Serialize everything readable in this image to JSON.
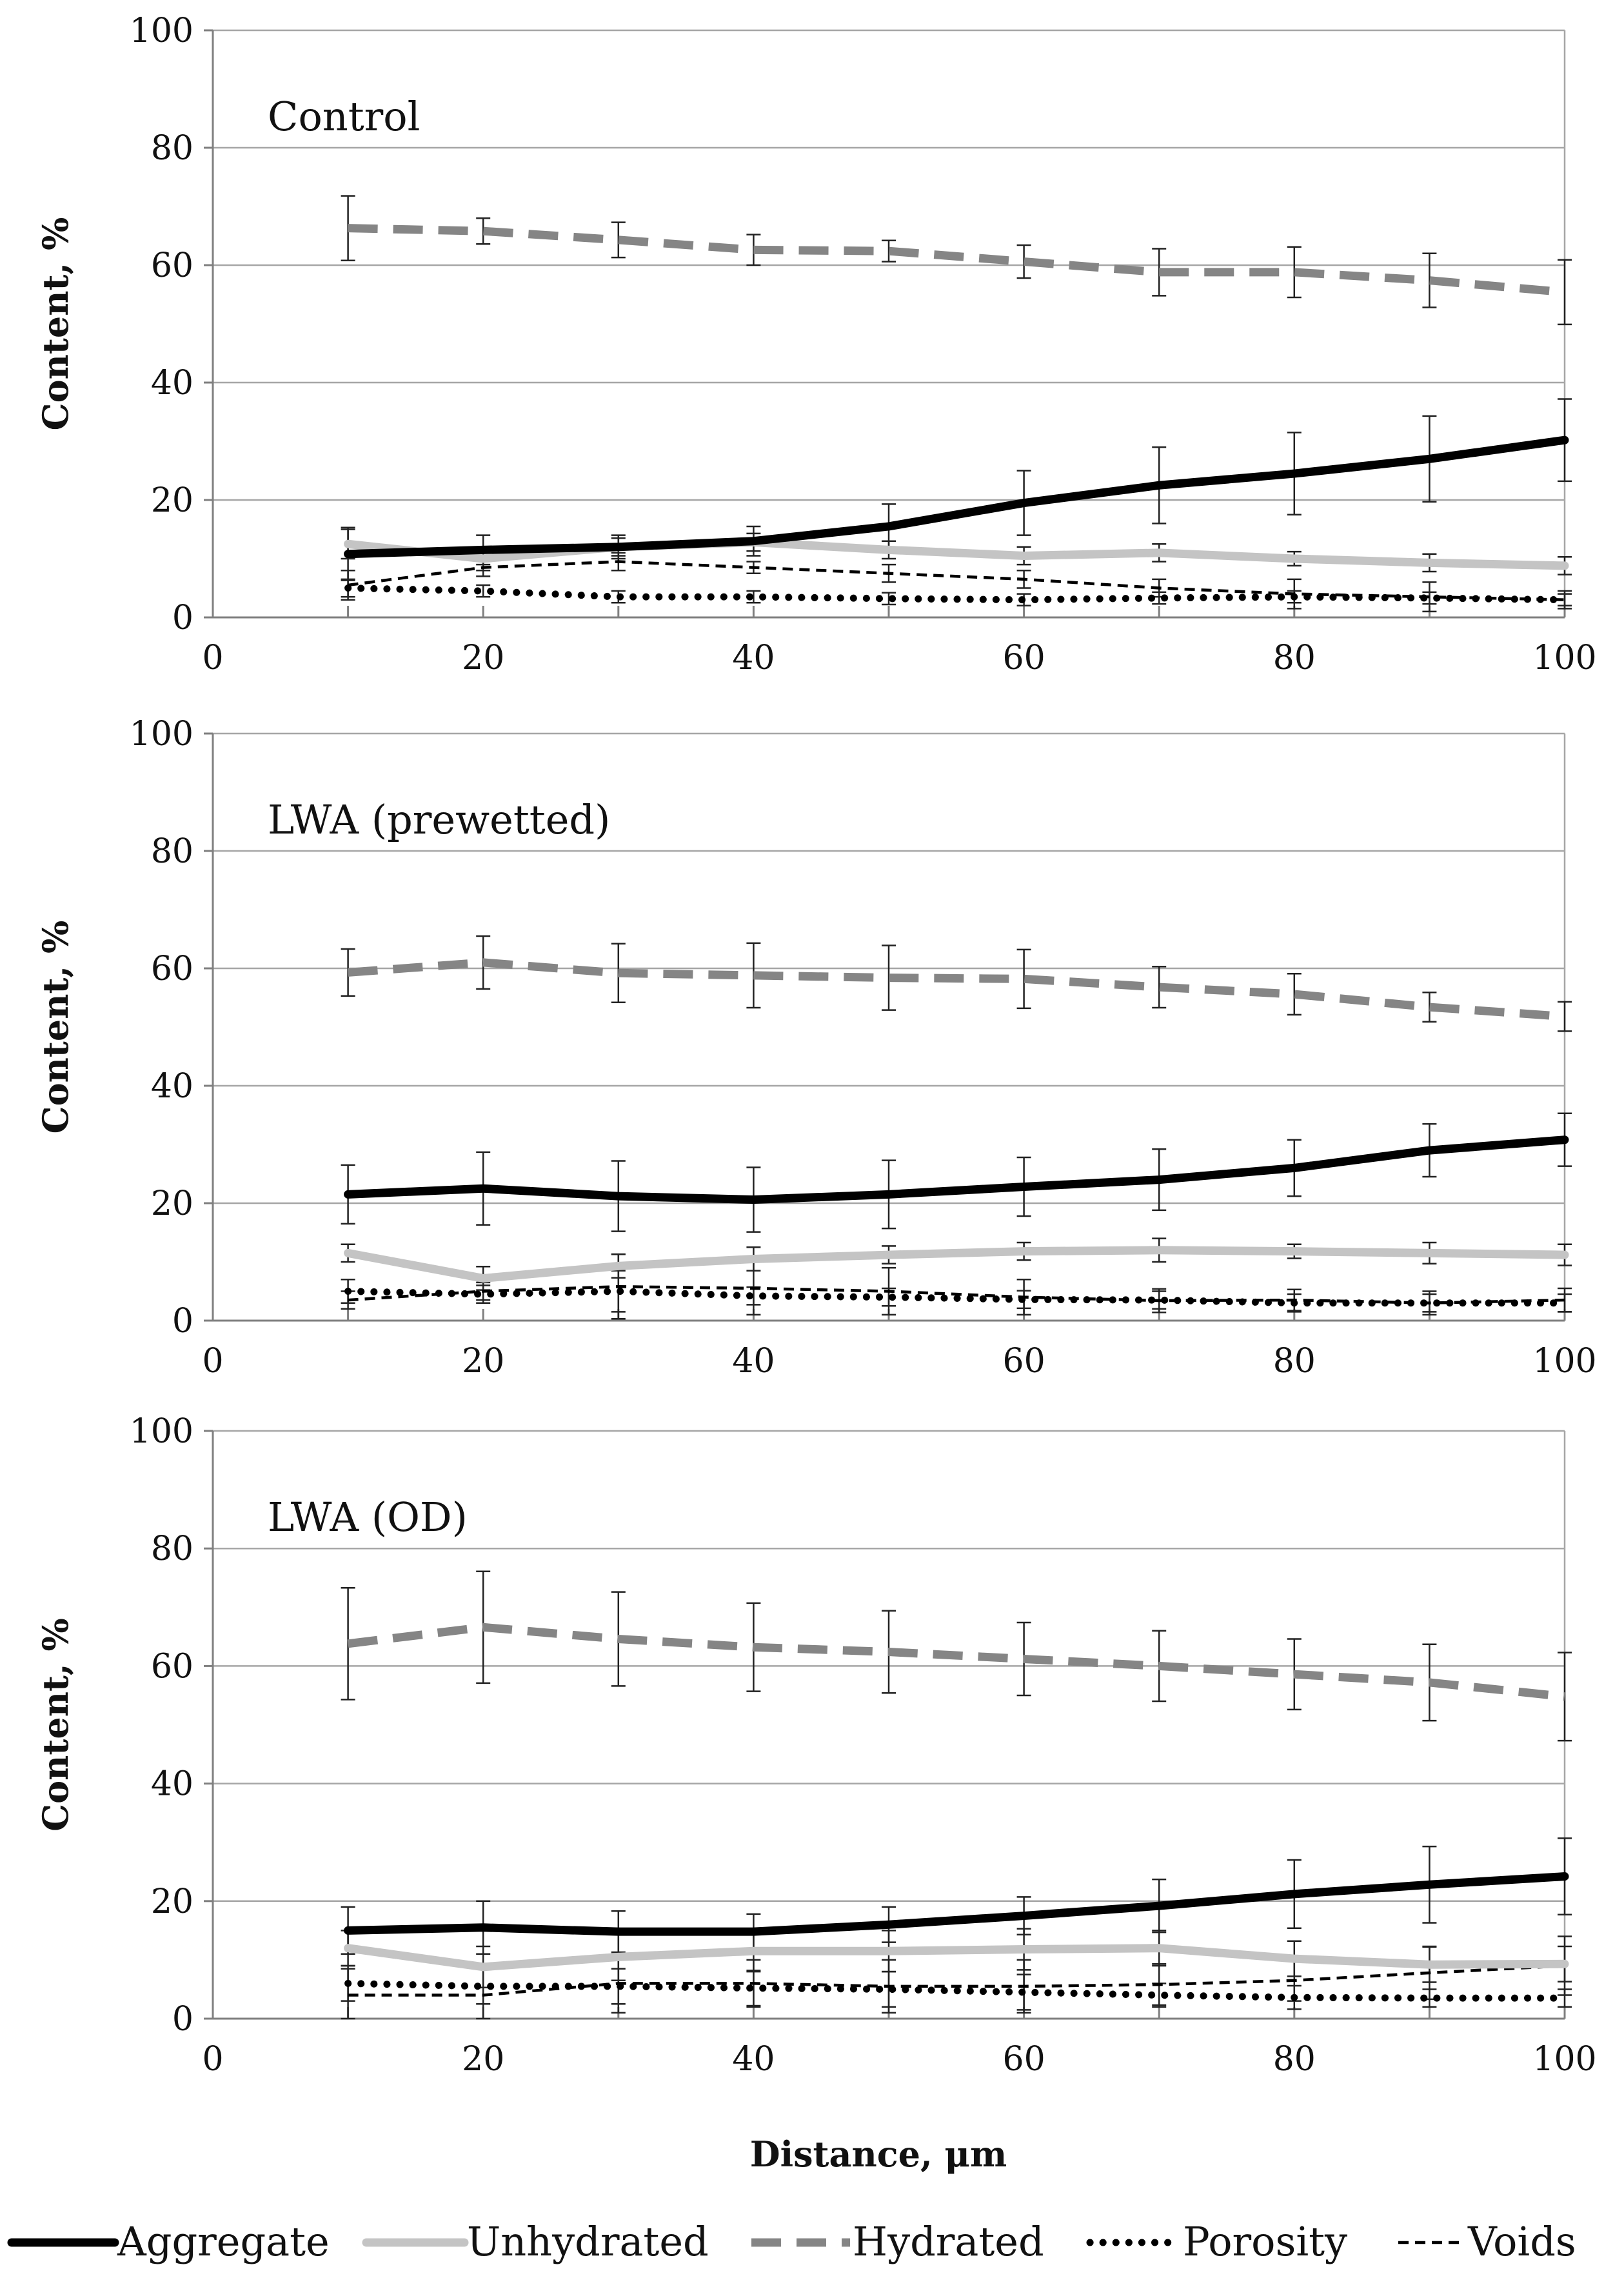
{
  "chart_data": {
    "type": "line",
    "xlabel": "Distance, μm",
    "x_ticks": [
      0,
      20,
      40,
      60,
      80,
      100
    ],
    "y_ticks": [
      0,
      20,
      40,
      60,
      80,
      100
    ],
    "xlim": [
      0,
      100
    ],
    "ylim": [
      0,
      100
    ],
    "grid": "horizontal",
    "legend_position": "bottom",
    "series_styles": [
      {
        "name": "Aggregate",
        "color": "#000000",
        "style": "solid-thick"
      },
      {
        "name": "Unhydrated",
        "color": "#c0c0c0",
        "style": "solid-thick"
      },
      {
        "name": "Hydrated",
        "color": "#808080",
        "style": "long-dash"
      },
      {
        "name": "Porosity",
        "color": "#000000",
        "style": "dotted"
      },
      {
        "name": "Voids",
        "color": "#000000",
        "style": "short-dash"
      }
    ],
    "panels": [
      {
        "title": "Control",
        "ylabel": "Content, %",
        "x": [
          10,
          20,
          30,
          40,
          50,
          60,
          70,
          80,
          90,
          100
        ],
        "series": [
          {
            "name": "Aggregate",
            "values": [
              10.8,
              11.5,
              12,
              13,
              15.5,
              19.5,
              22.5,
              24.5,
              27,
              30.2
            ],
            "errors": [
              4.5,
              2.5,
              2,
              2.5,
              3.8,
              5.5,
              6.5,
              7,
              7.3,
              7
            ]
          },
          {
            "name": "Unhydrated",
            "values": [
              12.5,
              10,
              12,
              12.8,
              11.5,
              10.5,
              11,
              10,
              9.3,
              8.8
            ],
            "errors": [
              2.5,
              2,
              1.5,
              1.5,
              1.5,
              1.5,
              1.5,
              1.2,
              1.5,
              1.5
            ]
          },
          {
            "name": "Hydrated",
            "values": [
              66.3,
              65.8,
              64.3,
              62.6,
              62.4,
              60.6,
              58.8,
              58.8,
              57.4,
              55.4
            ],
            "errors": [
              5.5,
              2.2,
              3,
              2.6,
              1.8,
              2.8,
              4,
              4.3,
              4.6,
              5.5
            ]
          },
          {
            "name": "Porosity",
            "values": [
              5,
              4.5,
              3.5,
              3.5,
              3.2,
              3,
              3.3,
              3.5,
              3.3,
              3
            ],
            "errors": [
              1.5,
              1,
              1,
              1,
              1,
              1,
              1,
              1,
              1,
              1
            ]
          },
          {
            "name": "Voids",
            "values": [
              5.5,
              8.5,
              9.5,
              8.5,
              7.5,
              6.5,
              5,
              4,
              3.5,
              3
            ],
            "errors": [
              2.5,
              1.5,
              1.5,
              1,
              1.5,
              1.5,
              1.5,
              2.5,
              2.5,
              1.5
            ]
          }
        ]
      },
      {
        "title": "LWA (prewetted)",
        "ylabel": "Content, %",
        "x": [
          10,
          20,
          30,
          40,
          50,
          60,
          70,
          80,
          90,
          100
        ],
        "series": [
          {
            "name": "Aggregate",
            "values": [
              21.5,
              22.5,
              21.2,
              20.6,
              21.5,
              22.8,
              24,
              26,
              29,
              30.8
            ],
            "errors": [
              5,
              6.2,
              6,
              5.5,
              5.8,
              5,
              5.2,
              4.8,
              4.5,
              4.5
            ]
          },
          {
            "name": "Unhydrated",
            "values": [
              11.5,
              7.2,
              9.3,
              10.5,
              11.2,
              11.8,
              12,
              11.8,
              11.5,
              11.2
            ],
            "errors": [
              1.5,
              2,
              2,
              2,
              1.5,
              1.5,
              2,
              1.2,
              1.8,
              1.8
            ]
          },
          {
            "name": "Hydrated",
            "values": [
              59.3,
              61,
              59.2,
              58.8,
              58.4,
              58.2,
              56.8,
              55.6,
              53.4,
              51.8
            ],
            "errors": [
              4,
              4.5,
              5,
              5.5,
              5.5,
              5,
              3.5,
              3.5,
              2.5,
              2.5
            ]
          },
          {
            "name": "Porosity",
            "values": [
              5,
              4.5,
              5,
              4.2,
              4,
              3.6,
              3.5,
              3,
              3,
              3
            ],
            "errors": [
              2,
              1.5,
              3.5,
              1.5,
              1.5,
              1.5,
              1.5,
              1.5,
              1.5,
              1.5
            ]
          },
          {
            "name": "Voids",
            "values": [
              3.5,
              5,
              5.8,
              5.5,
              5,
              4,
              3.4,
              3.5,
              3,
              3.5
            ],
            "errors": [
              1.5,
              1.5,
              5.5,
              4.5,
              4,
              3,
              2,
              1.8,
              2,
              2
            ]
          }
        ]
      },
      {
        "title": "LWA (OD)",
        "ylabel": "Content, %",
        "x": [
          10,
          20,
          30,
          40,
          50,
          60,
          70,
          80,
          90,
          100
        ],
        "series": [
          {
            "name": "Aggregate",
            "values": [
              15,
              15.5,
              14.8,
              14.8,
              16,
              17.5,
              19.2,
              21.2,
              22.8,
              24.2
            ],
            "errors": [
              4,
              4.5,
              3.5,
              3,
              3,
              3.2,
              4.5,
              5.8,
              6.5,
              6.5
            ]
          },
          {
            "name": "Unhydrated",
            "values": [
              12,
              8.8,
              10.5,
              11.5,
              11.5,
              11.8,
              12,
              10.2,
              9.2,
              9.3
            ],
            "errors": [
              3,
              3.5,
              4,
              3.5,
              3.5,
              3.5,
              3,
              3,
              3,
              3
            ]
          },
          {
            "name": "Hydrated",
            "values": [
              63.8,
              66.6,
              64.6,
              63.2,
              62.4,
              61.2,
              60,
              58.6,
              57.2,
              54.8
            ],
            "errors": [
              9.5,
              9.5,
              8,
              7.5,
              7,
              6.2,
              6,
              6,
              6.5,
              7.5
            ]
          },
          {
            "name": "Porosity",
            "values": [
              6,
              5.5,
              5.5,
              5.2,
              5,
              4.5,
              4,
              3.6,
              3.5,
              3.5
            ],
            "errors": [
              3,
              3,
              3,
              3,
              3,
              3,
              2,
              2,
              1.5,
              1.5
            ]
          },
          {
            "name": "Voids",
            "values": [
              4,
              4,
              6,
              6,
              5.5,
              5.5,
              5.8,
              6.5,
              7.8,
              9
            ],
            "errors": [
              4.5,
              4.5,
              5,
              4,
              4.5,
              4.5,
              3.5,
              3.5,
              4.5,
              5
            ]
          }
        ]
      }
    ]
  }
}
